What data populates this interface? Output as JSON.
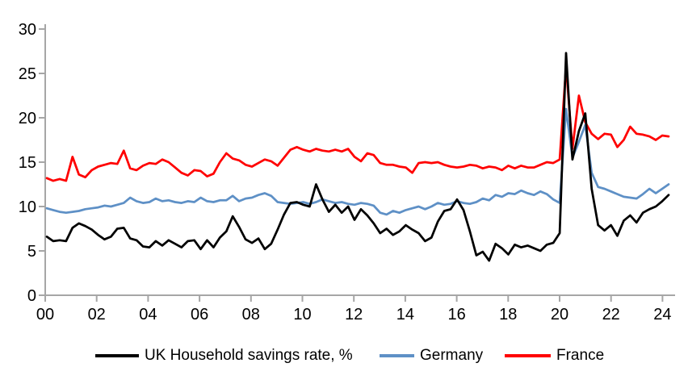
{
  "page": {
    "background": "#FFFFFF"
  },
  "chart_data": {
    "type": "line",
    "title": "",
    "frequency": "quarterly",
    "x_start": "2000Q1",
    "x_end": "2024Q2",
    "x_tick_labels": [
      "00",
      "02",
      "04",
      "06",
      "08",
      "10",
      "12",
      "14",
      "16",
      "18",
      "20",
      "22",
      "24"
    ],
    "x_tick_years": [
      2000,
      2002,
      2004,
      2006,
      2008,
      2010,
      2012,
      2014,
      2016,
      2018,
      2020,
      2022,
      2024
    ],
    "y_ticks": [
      0,
      5,
      10,
      15,
      20,
      25,
      30
    ],
    "ylim": [
      0,
      30
    ],
    "grid": false,
    "axis_color": "#A6A6A6",
    "legend_position": "bottom-center",
    "series": [
      {
        "name": "UK Household savings rate, %",
        "color": "#000000",
        "values": [
          6.6,
          6.1,
          6.2,
          6.1,
          7.6,
          8.1,
          7.8,
          7.4,
          6.8,
          6.3,
          6.6,
          7.5,
          7.6,
          6.4,
          6.2,
          5.5,
          5.4,
          6.1,
          5.6,
          6.2,
          5.8,
          5.4,
          6.1,
          6.2,
          5.2,
          6.2,
          5.4,
          6.5,
          7.2,
          8.9,
          7.7,
          6.3,
          5.9,
          6.4,
          5.2,
          5.8,
          7.4,
          9.1,
          10.4,
          10.5,
          10.2,
          10.0,
          12.5,
          10.8,
          9.4,
          10.2,
          9.3,
          10.0,
          8.5,
          9.7,
          9.0,
          8.1,
          7.0,
          7.5,
          6.8,
          7.2,
          7.9,
          7.4,
          7.0,
          6.1,
          6.5,
          8.3,
          9.5,
          9.7,
          10.8,
          9.6,
          7.2,
          4.5,
          4.9,
          3.9,
          5.8,
          5.3,
          4.6,
          5.7,
          5.4,
          5.6,
          5.3,
          5.0,
          5.7,
          5.9,
          7.0,
          27.3,
          15.3,
          18.5,
          20.5,
          12.0,
          7.9,
          7.3,
          7.9,
          6.7,
          8.4,
          9.0,
          8.2,
          9.3,
          9.7,
          10.0,
          10.6,
          11.3
        ]
      },
      {
        "name": "Germany",
        "color": "#5E90C6",
        "values": [
          9.8,
          9.6,
          9.4,
          9.3,
          9.4,
          9.5,
          9.7,
          9.8,
          9.9,
          10.1,
          10.0,
          10.2,
          10.4,
          11.0,
          10.6,
          10.4,
          10.5,
          10.9,
          10.6,
          10.7,
          10.5,
          10.4,
          10.6,
          10.5,
          11.0,
          10.6,
          10.5,
          10.7,
          10.7,
          11.2,
          10.6,
          10.9,
          11.0,
          11.3,
          11.5,
          11.2,
          10.5,
          10.4,
          10.3,
          10.4,
          10.5,
          10.3,
          10.5,
          10.8,
          10.6,
          10.4,
          10.5,
          10.3,
          10.2,
          10.4,
          10.3,
          10.1,
          9.3,
          9.1,
          9.5,
          9.3,
          9.6,
          9.8,
          10.0,
          9.7,
          10.0,
          10.4,
          10.2,
          10.3,
          10.6,
          10.4,
          10.3,
          10.5,
          10.9,
          10.7,
          11.3,
          11.1,
          11.5,
          11.4,
          11.8,
          11.5,
          11.3,
          11.7,
          11.4,
          10.8,
          10.4,
          21.0,
          15.5,
          17.3,
          19.2,
          13.8,
          12.2,
          12.0,
          11.7,
          11.4,
          11.1,
          11.0,
          10.9,
          11.4,
          12.0,
          11.5,
          12.0,
          12.5
        ]
      },
      {
        "name": "France",
        "color": "#FF0000",
        "values": [
          13.2,
          12.9,
          13.1,
          12.9,
          15.6,
          13.6,
          13.3,
          14.1,
          14.5,
          14.7,
          14.9,
          14.8,
          16.3,
          14.3,
          14.1,
          14.6,
          14.9,
          14.8,
          15.3,
          15.0,
          14.4,
          13.8,
          13.5,
          14.1,
          14.0,
          13.4,
          13.7,
          15.0,
          16.0,
          15.4,
          15.2,
          14.7,
          14.5,
          14.9,
          15.3,
          15.1,
          14.6,
          15.5,
          16.4,
          16.7,
          16.4,
          16.2,
          16.5,
          16.3,
          16.2,
          16.4,
          16.2,
          16.5,
          15.6,
          15.1,
          16.0,
          15.8,
          14.9,
          14.7,
          14.7,
          14.5,
          14.4,
          13.8,
          14.9,
          15.0,
          14.9,
          15.0,
          14.7,
          14.5,
          14.4,
          14.5,
          14.7,
          14.6,
          14.3,
          14.5,
          14.4,
          14.1,
          14.6,
          14.3,
          14.6,
          14.4,
          14.4,
          14.7,
          15.0,
          14.9,
          15.3,
          25.8,
          16.5,
          22.5,
          19.5,
          18.2,
          17.6,
          18.2,
          18.1,
          16.7,
          17.5,
          19.0,
          18.2,
          18.1,
          17.9,
          17.5,
          18.0,
          17.9
        ]
      }
    ]
  }
}
